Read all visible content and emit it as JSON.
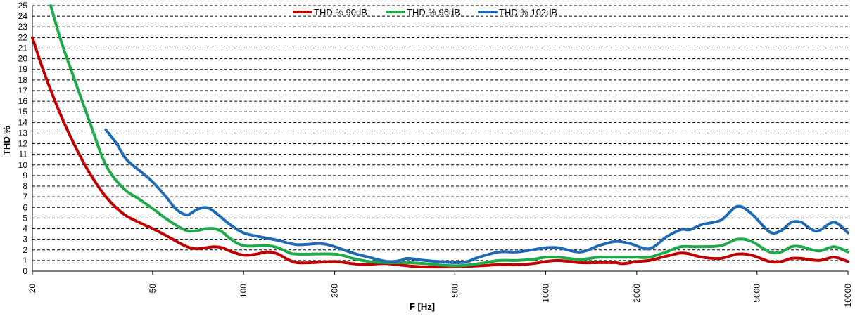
{
  "chart_data": {
    "type": "line",
    "xlabel": "F [Hz]",
    "ylabel": "THD %",
    "xscale": "log",
    "xlim": [
      20,
      10000
    ],
    "ylim": [
      0,
      25
    ],
    "xticks": [
      20,
      50,
      100,
      200,
      500,
      1000,
      2000,
      5000,
      10000
    ],
    "yticks": [
      0,
      1,
      2,
      3,
      4,
      5,
      6,
      7,
      8,
      9,
      10,
      11,
      12,
      13,
      14,
      15,
      16,
      17,
      18,
      19,
      20,
      21,
      22,
      23,
      24,
      25
    ],
    "grid": "horizontal dashed",
    "legend_position": "top-center",
    "series": [
      {
        "name": "THD % 90dB",
        "color": "#c00000",
        "points": [
          [
            20,
            22.0
          ],
          [
            22,
            18.5
          ],
          [
            25,
            14.5
          ],
          [
            28,
            11.5
          ],
          [
            31,
            9.2
          ],
          [
            35,
            7.0
          ],
          [
            40,
            5.4
          ],
          [
            45,
            4.6
          ],
          [
            50,
            4.0
          ],
          [
            55,
            3.4
          ],
          [
            60,
            2.8
          ],
          [
            65,
            2.3
          ],
          [
            70,
            2.1
          ],
          [
            75,
            2.2
          ],
          [
            80,
            2.3
          ],
          [
            85,
            2.2
          ],
          [
            90,
            1.9
          ],
          [
            100,
            1.5
          ],
          [
            110,
            1.6
          ],
          [
            120,
            1.8
          ],
          [
            130,
            1.6
          ],
          [
            140,
            1.1
          ],
          [
            150,
            0.8
          ],
          [
            170,
            0.8
          ],
          [
            200,
            0.9
          ],
          [
            230,
            0.7
          ],
          [
            250,
            0.6
          ],
          [
            280,
            0.7
          ],
          [
            300,
            0.7
          ],
          [
            350,
            0.5
          ],
          [
            400,
            0.4
          ],
          [
            500,
            0.4
          ],
          [
            600,
            0.5
          ],
          [
            700,
            0.6
          ],
          [
            800,
            0.6
          ],
          [
            900,
            0.7
          ],
          [
            1000,
            0.9
          ],
          [
            1100,
            1.0
          ],
          [
            1300,
            0.8
          ],
          [
            1500,
            0.8
          ],
          [
            1700,
            0.8
          ],
          [
            1800,
            0.7
          ],
          [
            2000,
            0.9
          ],
          [
            2200,
            1.0
          ],
          [
            2500,
            1.4
          ],
          [
            2800,
            1.7
          ],
          [
            3000,
            1.6
          ],
          [
            3300,
            1.3
          ],
          [
            3800,
            1.2
          ],
          [
            4300,
            1.6
          ],
          [
            4800,
            1.5
          ],
          [
            5500,
            0.9
          ],
          [
            6000,
            0.9
          ],
          [
            6500,
            1.2
          ],
          [
            7000,
            1.2
          ],
          [
            8000,
            1.0
          ],
          [
            9000,
            1.3
          ],
          [
            10000,
            0.9
          ]
        ]
      },
      {
        "name": "THD % 96dB",
        "color": "#1faa4a",
        "points": [
          [
            23,
            25.0
          ],
          [
            25,
            21.5
          ],
          [
            28,
            17.5
          ],
          [
            31,
            14.0
          ],
          [
            35,
            10.0
          ],
          [
            40,
            7.8
          ],
          [
            45,
            6.8
          ],
          [
            50,
            5.9
          ],
          [
            55,
            5.0
          ],
          [
            60,
            4.3
          ],
          [
            65,
            3.8
          ],
          [
            70,
            3.8
          ],
          [
            75,
            4.0
          ],
          [
            80,
            4.0
          ],
          [
            85,
            3.7
          ],
          [
            90,
            3.1
          ],
          [
            100,
            2.4
          ],
          [
            120,
            2.4
          ],
          [
            130,
            2.2
          ],
          [
            140,
            1.8
          ],
          [
            150,
            1.6
          ],
          [
            200,
            1.6
          ],
          [
            230,
            1.2
          ],
          [
            260,
            0.9
          ],
          [
            300,
            0.8
          ],
          [
            350,
            0.8
          ],
          [
            400,
            0.7
          ],
          [
            500,
            0.5
          ],
          [
            600,
            0.7
          ],
          [
            700,
            1.0
          ],
          [
            800,
            1.0
          ],
          [
            900,
            1.1
          ],
          [
            1000,
            1.3
          ],
          [
            1100,
            1.3
          ],
          [
            1300,
            1.1
          ],
          [
            1500,
            1.3
          ],
          [
            1800,
            1.3
          ],
          [
            2000,
            1.3
          ],
          [
            2200,
            1.3
          ],
          [
            2500,
            1.8
          ],
          [
            2800,
            2.3
          ],
          [
            3200,
            2.3
          ],
          [
            3800,
            2.4
          ],
          [
            4300,
            3.0
          ],
          [
            4800,
            2.8
          ],
          [
            5500,
            1.8
          ],
          [
            6000,
            1.8
          ],
          [
            6500,
            2.3
          ],
          [
            7000,
            2.3
          ],
          [
            8000,
            1.9
          ],
          [
            9000,
            2.3
          ],
          [
            10000,
            1.8
          ]
        ]
      },
      {
        "name": "THD % 102dB",
        "color": "#1f6ab4",
        "points": [
          [
            35,
            13.3
          ],
          [
            38,
            12.0
          ],
          [
            41,
            10.5
          ],
          [
            46,
            9.3
          ],
          [
            50,
            8.4
          ],
          [
            55,
            7.1
          ],
          [
            60,
            5.8
          ],
          [
            65,
            5.3
          ],
          [
            70,
            5.8
          ],
          [
            75,
            6.0
          ],
          [
            80,
            5.6
          ],
          [
            90,
            4.4
          ],
          [
            100,
            3.6
          ],
          [
            110,
            3.3
          ],
          [
            130,
            2.9
          ],
          [
            150,
            2.5
          ],
          [
            180,
            2.6
          ],
          [
            200,
            2.3
          ],
          [
            230,
            1.7
          ],
          [
            260,
            1.3
          ],
          [
            300,
            0.9
          ],
          [
            330,
            1.0
          ],
          [
            350,
            1.2
          ],
          [
            400,
            1.0
          ],
          [
            500,
            0.8
          ],
          [
            550,
            0.9
          ],
          [
            600,
            1.3
          ],
          [
            700,
            1.8
          ],
          [
            800,
            1.8
          ],
          [
            900,
            2.0
          ],
          [
            1000,
            2.2
          ],
          [
            1100,
            2.2
          ],
          [
            1300,
            1.8
          ],
          [
            1500,
            2.4
          ],
          [
            1700,
            2.8
          ],
          [
            1900,
            2.6
          ],
          [
            2200,
            2.1
          ],
          [
            2500,
            3.2
          ],
          [
            2800,
            3.9
          ],
          [
            3000,
            3.9
          ],
          [
            3300,
            4.4
          ],
          [
            3800,
            4.8
          ],
          [
            4300,
            6.1
          ],
          [
            4800,
            5.4
          ],
          [
            5500,
            3.7
          ],
          [
            6000,
            3.8
          ],
          [
            6500,
            4.6
          ],
          [
            7000,
            4.6
          ],
          [
            7500,
            4.0
          ],
          [
            8000,
            3.8
          ],
          [
            9000,
            4.6
          ],
          [
            10000,
            3.6
          ]
        ]
      }
    ]
  }
}
